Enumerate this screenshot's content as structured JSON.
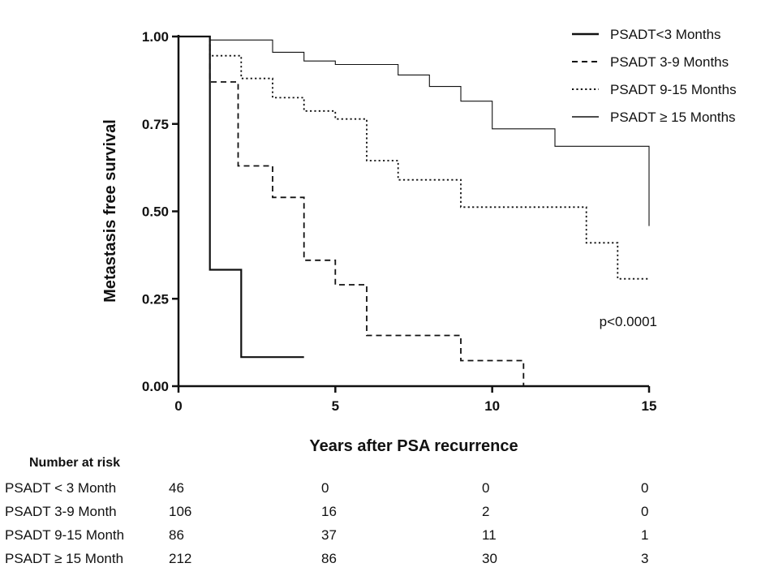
{
  "chart_data": {
    "type": "line",
    "title": "",
    "xlabel": "Years after PSA recurrence",
    "ylabel": "Metastasis free survival",
    "xlim": [
      0,
      15
    ],
    "ylim": [
      0,
      1
    ],
    "x_ticks": [
      "0",
      "5",
      "10",
      "15"
    ],
    "y_ticks": [
      "0.00",
      "0.25",
      "0.50",
      "0.75",
      "1.00"
    ],
    "legend_position": "top-right",
    "annotation": "p<0.0001",
    "series": [
      {
        "name": "PSADT<3 Months",
        "style": "solid-bold",
        "points": [
          [
            0,
            1.0
          ],
          [
            1,
            1.0
          ],
          [
            1,
            0.333
          ],
          [
            2,
            0.333
          ],
          [
            2,
            0.083
          ],
          [
            4,
            0.083
          ]
        ]
      },
      {
        "name": "PSADT 3-9 Months",
        "style": "dashed",
        "points": [
          [
            0,
            1.0
          ],
          [
            1,
            1.0
          ],
          [
            1,
            0.87
          ],
          [
            1.9,
            0.87
          ],
          [
            1.9,
            0.63
          ],
          [
            3,
            0.63
          ],
          [
            3,
            0.54
          ],
          [
            4,
            0.54
          ],
          [
            4,
            0.36
          ],
          [
            5,
            0.36
          ],
          [
            5,
            0.29
          ],
          [
            6,
            0.29
          ],
          [
            6,
            0.145
          ],
          [
            9,
            0.145
          ],
          [
            9,
            0.073
          ],
          [
            11,
            0.073
          ],
          [
            11,
            0.0
          ]
        ]
      },
      {
        "name": "PSADT 9-15 Months",
        "style": "dotted",
        "points": [
          [
            0,
            1.0
          ],
          [
            1,
            1.0
          ],
          [
            1,
            0.945
          ],
          [
            2,
            0.945
          ],
          [
            2,
            0.88
          ],
          [
            3,
            0.88
          ],
          [
            3,
            0.825
          ],
          [
            4,
            0.825
          ],
          [
            4,
            0.787
          ],
          [
            5,
            0.787
          ],
          [
            5,
            0.764
          ],
          [
            6,
            0.764
          ],
          [
            6,
            0.645
          ],
          [
            7,
            0.645
          ],
          [
            7,
            0.59
          ],
          [
            9,
            0.59
          ],
          [
            9,
            0.512
          ],
          [
            13,
            0.512
          ],
          [
            13,
            0.41
          ],
          [
            14,
            0.41
          ],
          [
            14,
            0.307
          ],
          [
            15,
            0.307
          ]
        ]
      },
      {
        "name": "PSADT ≥ 15 Months",
        "style": "solid-thin",
        "points": [
          [
            0,
            1.0
          ],
          [
            1,
            1.0
          ],
          [
            1,
            0.99
          ],
          [
            3,
            0.99
          ],
          [
            3,
            0.955
          ],
          [
            4,
            0.955
          ],
          [
            4,
            0.93
          ],
          [
            5,
            0.93
          ],
          [
            5,
            0.92
          ],
          [
            7,
            0.92
          ],
          [
            7,
            0.89
          ],
          [
            8,
            0.89
          ],
          [
            8,
            0.857
          ],
          [
            9,
            0.857
          ],
          [
            9,
            0.815
          ],
          [
            10,
            0.815
          ],
          [
            10,
            0.736
          ],
          [
            12,
            0.736
          ],
          [
            12,
            0.686
          ],
          [
            15,
            0.686
          ],
          [
            15,
            0.458
          ]
        ]
      }
    ]
  },
  "risk_table": {
    "title": "Number at risk",
    "rows": [
      {
        "label": "PSADT < 3 Month",
        "values": [
          "46",
          "0",
          "0",
          "0"
        ]
      },
      {
        "label": "PSADT 3-9 Month",
        "values": [
          "106",
          "16",
          "2",
          "0"
        ]
      },
      {
        "label": "PSADT 9-15 Month",
        "values": [
          "86",
          "37",
          "11",
          "1"
        ]
      },
      {
        "label": "PSADT ≥ 15 Month",
        "values": [
          "212",
          "86",
          "30",
          "3"
        ]
      }
    ]
  }
}
